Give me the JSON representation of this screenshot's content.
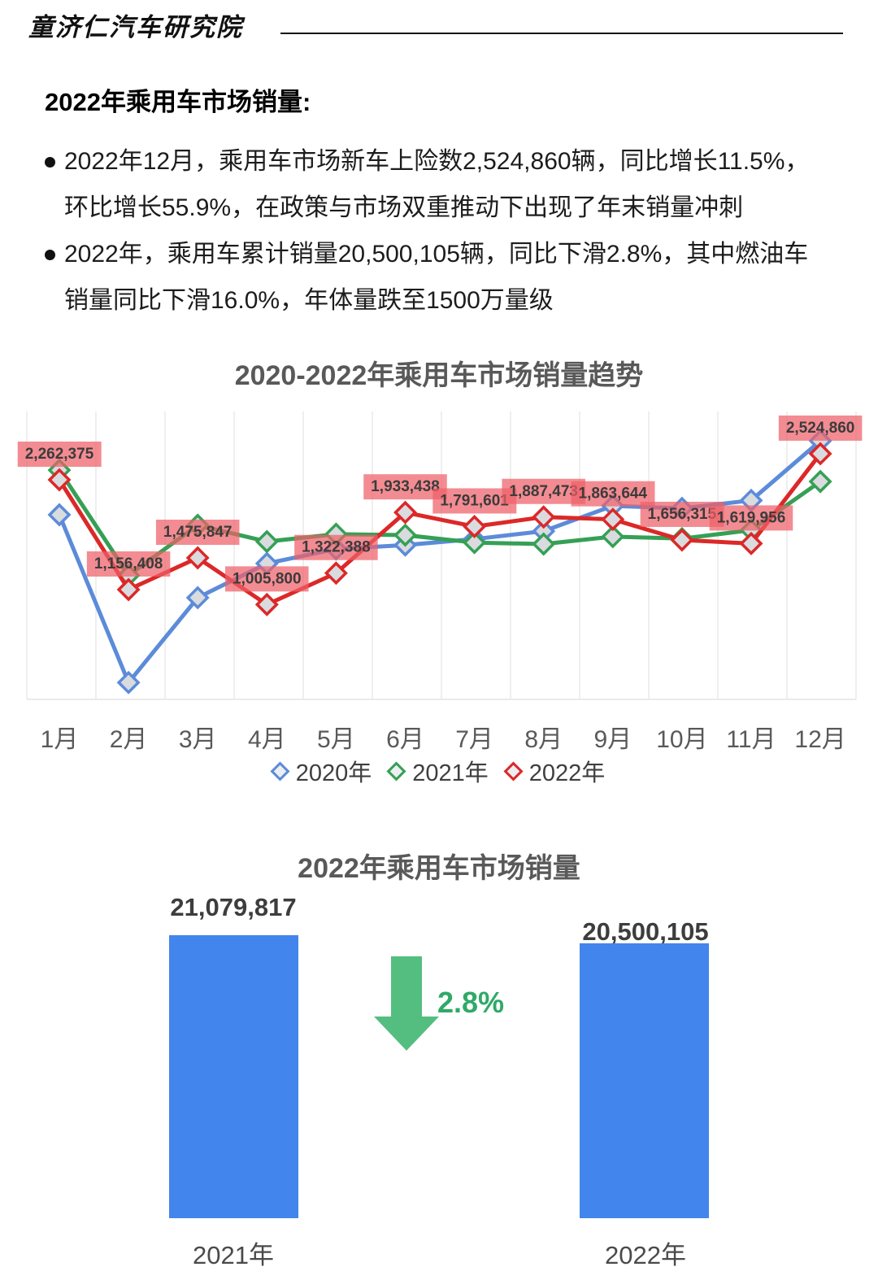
{
  "header": {
    "logo_text": "童济仁汽车研究院"
  },
  "section": {
    "heading": "2022年乘用车市场销量:",
    "bullets": [
      {
        "lines": [
          "2022年12月，乘用车市场新车上险数2,524,860辆，同比增长11.5%，",
          "环比增长55.9%，在政策与市场双重推动下出现了年末销量冲刺"
        ]
      },
      {
        "lines": [
          "2022年，乘用车累计销量20,500,105辆，同比下滑2.8%，其中燃油车",
          "销量同比下滑16.0%，年体量跌至1500万量级"
        ]
      }
    ]
  },
  "chart_data": [
    {
      "type": "line",
      "title": "2020-2022年乘用车市场销量趋势",
      "categories": [
        "1月",
        "2月",
        "3月",
        "4月",
        "5月",
        "6月",
        "7月",
        "8月",
        "9月",
        "10月",
        "11月",
        "12月"
      ],
      "series": [
        {
          "name": "2020年",
          "color": "#5C8BD9",
          "labeled": false,
          "estimated": true,
          "values": [
            1910000,
            220000,
            1075000,
            1420000,
            1565000,
            1605000,
            1665000,
            1745000,
            2000000,
            1975000,
            2055000,
            2655000
          ]
        },
        {
          "name": "2021年",
          "color": "#35A055",
          "labeled": false,
          "estimated": true,
          "values": [
            2360000,
            1300000,
            1805000,
            1640000,
            1715000,
            1705000,
            1630000,
            1615000,
            1690000,
            1670000,
            1755000,
            2245000
          ]
        },
        {
          "name": "2022年",
          "color": "#DC2828",
          "labeled": true,
          "estimated": false,
          "values": [
            2262375,
            1156408,
            1475847,
            1005800,
            1322388,
            1933438,
            1791601,
            1887473,
            1863644,
            1656315,
            1619956,
            2524860
          ],
          "labels": [
            "2,262,375",
            "1,156,408",
            "1,475,847",
            "1,005,800",
            "1,322,388",
            "1,933,438",
            "1,791,601",
            "1,887,473",
            "1,863,644",
            "1,656,315",
            "1,619,956",
            "2,524,860"
          ]
        }
      ],
      "label_bg": "#EF5F68",
      "marker": "diamond",
      "grid": "vertical-light",
      "y_axis_visible": false,
      "ylim": [
        100000,
        2750000
      ],
      "legend_position": "bottom"
    },
    {
      "type": "bar",
      "title": "2022年乘用车市场销量",
      "categories": [
        "2021年",
        "2022年"
      ],
      "values": [
        21079817,
        20500105
      ],
      "value_labels": [
        "21,079,817",
        "20,500,105"
      ],
      "change_label": "2.8%",
      "change_direction": "down",
      "bar_color": "#4285EC",
      "arrow_color": "#53BE80"
    }
  ]
}
